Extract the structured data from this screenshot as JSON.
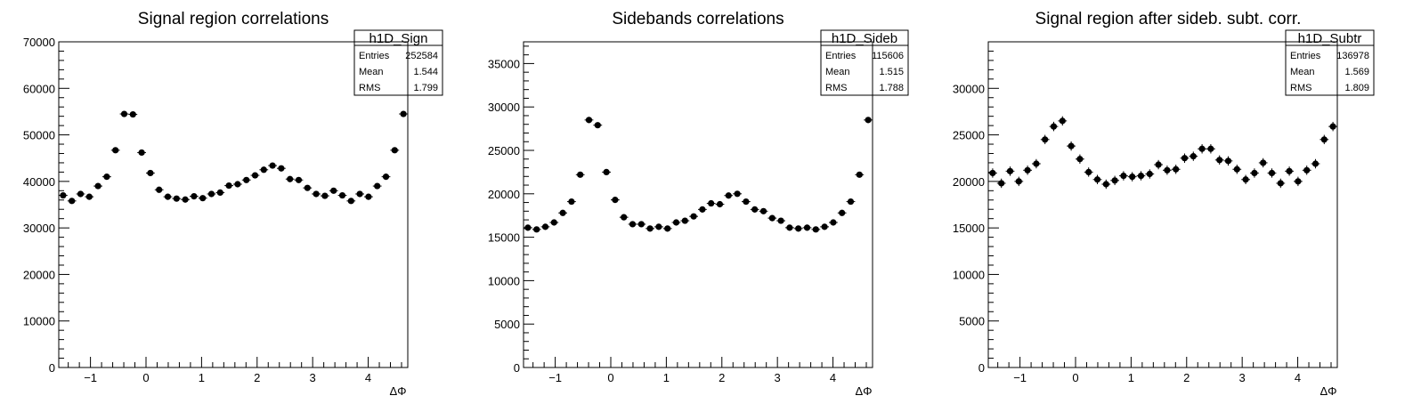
{
  "chart_data": [
    {
      "type": "scatter",
      "title": "Signal region correlations",
      "xlabel": "ΔΦ",
      "ylabel": "",
      "xlim": [
        -1.5708,
        4.7124
      ],
      "ylim": [
        0,
        70000
      ],
      "xticks": [
        -1,
        0,
        1,
        2,
        3,
        4
      ],
      "yticks": [
        0,
        10000,
        20000,
        30000,
        40000,
        50000,
        60000,
        70000
      ],
      "stats": {
        "name": "h1D_Sign",
        "entries": "252584",
        "mean": "1.544",
        "rms": "1.799"
      },
      "series": [
        {
          "x": [
            -1.4923,
            -1.3352,
            -1.1781,
            -1.021,
            -0.8639,
            -0.7069,
            -0.5498,
            -0.3927,
            -0.2356,
            -0.0785,
            0.0785,
            0.2356,
            0.3927,
            0.5498,
            0.7069,
            0.8639,
            1.021,
            1.1781,
            1.3352,
            1.4923,
            1.6493,
            1.8064,
            1.9635,
            2.1206,
            2.2777,
            2.4347,
            2.5918,
            2.7489,
            2.906,
            3.0631,
            3.2201,
            3.3772,
            3.5343,
            3.6914,
            3.8485,
            4.0055,
            4.1626,
            4.3197,
            4.4768,
            4.6339
          ],
          "y": [
            37000,
            35800,
            37300,
            36700,
            39000,
            41000,
            46700,
            54500,
            54400,
            46200,
            41800,
            38200,
            36700,
            36300,
            36100,
            36800,
            36400,
            37300,
            37600,
            39100,
            39400,
            40300,
            41300,
            42500,
            43400,
            42800,
            40500,
            40300,
            38600,
            37300,
            36900,
            38000,
            37000,
            35800,
            37300,
            36700,
            39000,
            41000,
            46700,
            54500
          ],
          "yerr": 200
        }
      ]
    },
    {
      "type": "scatter",
      "title": "Sidebands correlations",
      "xlabel": "ΔΦ",
      "ylabel": "",
      "xlim": [
        -1.5708,
        4.7124
      ],
      "ylim": [
        0,
        37500
      ],
      "xticks": [
        -1,
        0,
        1,
        2,
        3,
        4
      ],
      "yticks": [
        0,
        5000,
        10000,
        15000,
        20000,
        25000,
        30000,
        35000
      ],
      "stats": {
        "name": "h1D_Sideb",
        "entries": "115606",
        "mean": "1.515",
        "rms": "1.788"
      },
      "series": [
        {
          "x": [
            -1.4923,
            -1.3352,
            -1.1781,
            -1.021,
            -0.8639,
            -0.7069,
            -0.5498,
            -0.3927,
            -0.2356,
            -0.0785,
            0.0785,
            0.2356,
            0.3927,
            0.5498,
            0.7069,
            0.8639,
            1.021,
            1.1781,
            1.3352,
            1.4923,
            1.6493,
            1.8064,
            1.9635,
            2.1206,
            2.2777,
            2.4347,
            2.5918,
            2.7489,
            2.906,
            3.0631,
            3.2201,
            3.3772,
            3.5343,
            3.6914,
            3.8485,
            4.0055,
            4.1626,
            4.3197,
            4.4768,
            4.6339
          ],
          "y": [
            16100,
            15900,
            16200,
            16700,
            17800,
            19100,
            22200,
            28500,
            27900,
            22500,
            19300,
            17300,
            16500,
            16500,
            16000,
            16200,
            16000,
            16700,
            16900,
            17400,
            18200,
            18900,
            18800,
            19800,
            20000,
            19100,
            18200,
            18000,
            17200,
            16900,
            16100,
            16000,
            16100,
            15900,
            16200,
            16700,
            17800,
            19100,
            22200,
            28500
          ],
          "yerr": 150
        }
      ]
    },
    {
      "type": "scatter",
      "title": "Signal region after sideb. subt. corr.",
      "xlabel": "ΔΦ",
      "ylabel": "",
      "xlim": [
        -1.5708,
        4.7124
      ],
      "ylim": [
        0,
        35000
      ],
      "xticks": [
        -1,
        0,
        1,
        2,
        3,
        4
      ],
      "yticks": [
        0,
        5000,
        10000,
        15000,
        20000,
        25000,
        30000
      ],
      "stats": {
        "name": "h1D_Subtr",
        "entries": "136978",
        "mean": "1.569",
        "rms": "1.809"
      },
      "series": [
        {
          "x": [
            -1.4923,
            -1.3352,
            -1.1781,
            -1.021,
            -0.8639,
            -0.7069,
            -0.5498,
            -0.3927,
            -0.2356,
            -0.0785,
            0.0785,
            0.2356,
            0.3927,
            0.5498,
            0.7069,
            0.8639,
            1.021,
            1.1781,
            1.3352,
            1.4923,
            1.6493,
            1.8064,
            1.9635,
            2.1206,
            2.2777,
            2.4347,
            2.5918,
            2.7489,
            2.906,
            3.0631,
            3.2201,
            3.3772,
            3.5343,
            3.6914,
            3.8485,
            4.0055,
            4.1626,
            4.3197,
            4.4768,
            4.6339
          ],
          "y": [
            20900,
            19800,
            21100,
            20000,
            21200,
            21900,
            24500,
            25900,
            26500,
            23800,
            22400,
            21000,
            20200,
            19700,
            20100,
            20600,
            20500,
            20600,
            20800,
            21800,
            21200,
            21300,
            22500,
            22700,
            23500,
            23500,
            22300,
            22200,
            21300,
            20200,
            20900,
            22000,
            20900,
            19800,
            21100,
            20000,
            21200,
            21900,
            24500,
            25900
          ],
          "yerr": 500
        }
      ]
    }
  ]
}
